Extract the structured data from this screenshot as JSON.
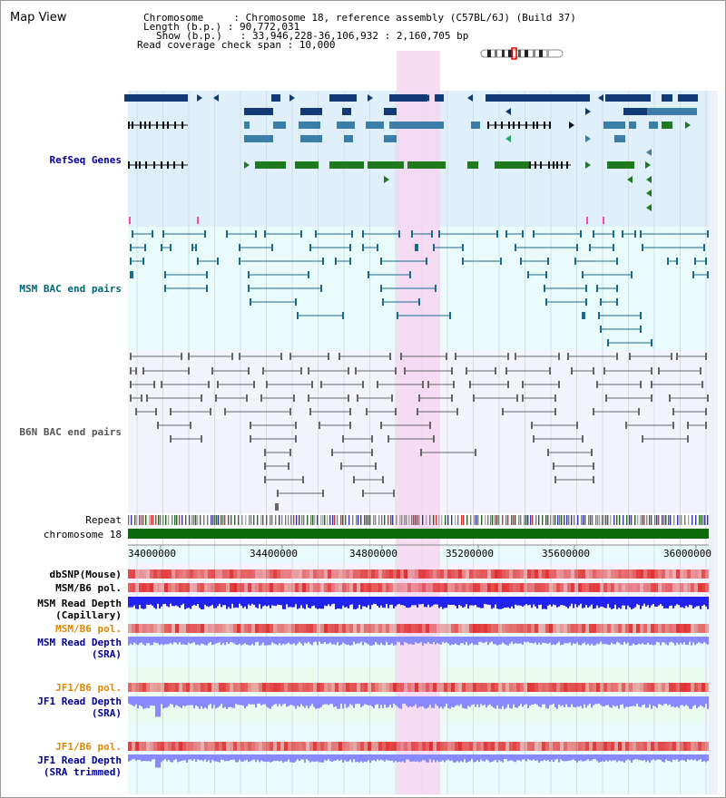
{
  "header": {
    "title": "Map View",
    "info_lines": [
      "Chromosome     : Chromosome 18, reference assembly (C57BL/6J) (Build 37)",
      "Length (b.p.) : 90,772,031",
      "Show (b.p.)   : 33,946,228-36,106,932 : 2,160,705 bp",
      "Read coverage check span : 10,000"
    ]
  },
  "colors": {
    "refseq_bg": "#dff0fb",
    "bac_bg": "#eafbfb",
    "lower_bg": "#ecfbf0",
    "highlight": "#f7d6f0",
    "navy": "#123a74",
    "teal": "#3b7fa8",
    "green": "#1f7a1f",
    "msm_line": "#1a6a8c",
    "b6n_line": "#666666",
    "chrom_bar": "#0b6b0b",
    "snp_red": "#e03030",
    "depth_blue": "#2222ee",
    "depth_lavender": "#8888ff",
    "label_navy": "#000099",
    "label_orange": "#e08800",
    "label_teal": "#006677"
  },
  "tracks": {
    "refseq": "RefSeq Genes",
    "msm_bac": "MSM BAC end pairs",
    "b6n_bac": "B6N BAC end pairs",
    "repeat": "Repeat",
    "chromosome": "chromosome 18"
  },
  "axis": {
    "tick_labels": [
      "34000000",
      "34400000",
      "34800000",
      "35200000",
      "35600000",
      "36000000"
    ]
  },
  "lower_tracks": [
    {
      "id": "dbsnp",
      "label": "dbSNP(Mouse)",
      "color": "#000000"
    },
    {
      "id": "msm_b6_pol_1",
      "label": "MSM/B6 pol.",
      "color": "#000000"
    },
    {
      "id": "msm_depth_cap",
      "label": "MSM Read Depth\n(Capillary)",
      "color": "#000000"
    },
    {
      "id": "msm_b6_pol_2",
      "label": "MSM/B6 pol.",
      "color": "#e08800"
    },
    {
      "id": "msm_depth_sra",
      "label": "MSM Read Depth\n(SRA)",
      "color": "#000099"
    },
    {
      "id": "jf1_b6_pol_1",
      "label": "JF1/B6 pol.",
      "color": "#e08800"
    },
    {
      "id": "jf1_depth_sra",
      "label": "JF1 Read Depth\n(SRA)",
      "color": "#000099"
    },
    {
      "id": "jf1_b6_pol_2",
      "label": "JF1/B6 pol.",
      "color": "#e08800"
    },
    {
      "id": "jf1_depth_trim",
      "label": "JF1 Read Depth\n(SRA trimmed)",
      "color": "#000099"
    }
  ]
}
